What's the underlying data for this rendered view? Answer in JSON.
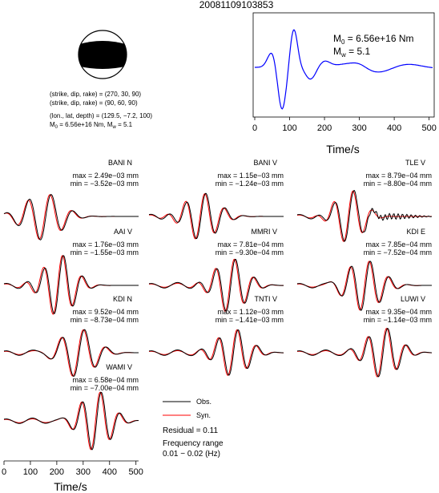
{
  "title": "20081109103853",
  "mechanism": {
    "plane1": "(strike, dip, rake) = (270, 30, 90)",
    "plane2": "(strike, dip, rake) = (90, 60, 90)",
    "location": "(lon., lat, depth) = (129.5, −7.2, 100)",
    "m0_text": "M",
    "m0_sub": "0",
    "m0_value": " = 6.56e+16 Nm, M",
    "mw_sub": "w",
    "mw_value": " = 5.1"
  },
  "moment_panel": {
    "m0_label": "M",
    "m0_sub": "0",
    "m0_value": " = 6.56e+16 Nm",
    "mw_label": "M",
    "mw_sub": "w",
    "mw_value": " = 5.1",
    "xlabel": "Time/s",
    "ticks": [
      "0",
      "100",
      "200",
      "300",
      "400",
      "500"
    ],
    "line_color": "#0000ff"
  },
  "traces": [
    {
      "station": "BANI N",
      "max": "max = 2.49e−03 mm",
      "min": "min = −3.52e−03 mm"
    },
    {
      "station": "BANI V",
      "max": "max = 1.15e−03 mm",
      "min": "min = −1.24e−03 mm"
    },
    {
      "station": "TLE V",
      "max": "max = 8.79e−04 mm",
      "min": "min = −8.80e−04 mm"
    },
    {
      "station": "AAI V",
      "max": "max = 1.76e−03 mm",
      "min": "min = −1.55e−03 mm"
    },
    {
      "station": "MMRI V",
      "max": "max = 7.81e−04 mm",
      "min": "min = −9.30e−04 mm"
    },
    {
      "station": "KDI E",
      "max": "max = 7.85e−04 mm",
      "min": "min = −7.52e−04 mm"
    },
    {
      "station": "KDI N",
      "max": "max = 9.52e−04 mm",
      "min": "min = −8.73e−04 mm"
    },
    {
      "station": "TNTI V",
      "max": "max = 1.12e−03 mm",
      "min": "min = −1.41e−03 mm"
    },
    {
      "station": "LUWI V",
      "max": "max = 9.35e−04 mm",
      "min": "min = −1.14e−03 mm"
    },
    {
      "station": "WAMI V",
      "max": "max = 6.58e−04 mm",
      "min": "min = −7.00e−04 mm"
    }
  ],
  "bottom_axis": {
    "xlabel": "Time/s",
    "ticks": [
      "0",
      "100",
      "200",
      "300",
      "400",
      "500"
    ]
  },
  "legend": {
    "obs_label": "Obs.",
    "syn_label": "Syn.",
    "obs_color": "#000000",
    "syn_color": "#ff0000",
    "residual": "Residual = 0.11",
    "freq_label": "Frequency range",
    "freq_value": "0.01 − 0.02 (Hz)"
  }
}
